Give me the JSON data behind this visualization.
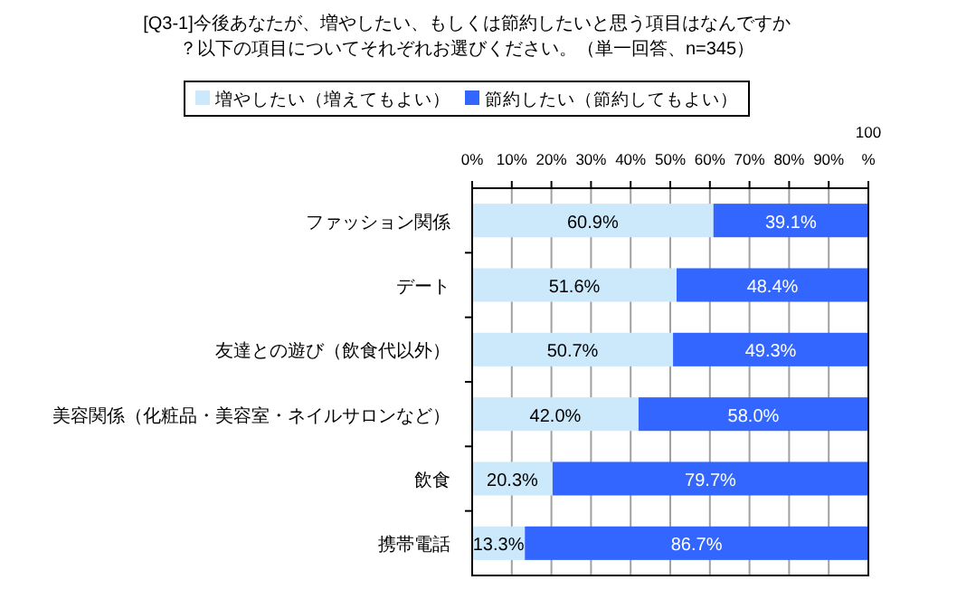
{
  "chart_data": {
    "type": "bar",
    "orientation": "horizontal",
    "stacked": true,
    "title": "[Q3-1]今後あなたが、増やしたい、もしくは節約したいと思う項目はなんですか？以下の項目についてそれぞれお選びください。（単一回答、n=345）",
    "categories": [
      "ファッション関係",
      "デート",
      "友達との遊び（飲食代以外）",
      "美容関係（化粧品・美容室・ネイルサロンなど）",
      "飲食",
      "携帯電話"
    ],
    "series": [
      {
        "name": "増やしたい（増えてもよい）",
        "color": "#cce9fc",
        "values": [
          60.9,
          51.6,
          50.7,
          42.0,
          20.3,
          13.3
        ],
        "value_labels": [
          "60.9%",
          "51.6%",
          "50.7%",
          "42.0%",
          "20.3%",
          "13.3%"
        ]
      },
      {
        "name": "節約したい（節約してもよい）",
        "color": "#3366ff",
        "values": [
          39.1,
          48.4,
          49.3,
          58.0,
          79.7,
          86.7
        ],
        "value_labels": [
          "39.1%",
          "48.4%",
          "49.3%",
          "58.0%",
          "79.7%",
          "86.7%"
        ]
      }
    ],
    "xlim": [
      0,
      100
    ],
    "xticks": [
      {
        "value": 0,
        "label": "0%"
      },
      {
        "value": 10,
        "label": "10%"
      },
      {
        "value": 20,
        "label": "20%"
      },
      {
        "value": 30,
        "label": "30%"
      },
      {
        "value": 40,
        "label": "40%"
      },
      {
        "value": 50,
        "label": "50%"
      },
      {
        "value": 60,
        "label": "60%"
      },
      {
        "value": 70,
        "label": "70%"
      },
      {
        "value": 80,
        "label": "80%"
      },
      {
        "value": 90,
        "label": "90%"
      },
      {
        "value": 100,
        "label": "100%"
      }
    ],
    "grid": "x",
    "legend": "top"
  }
}
